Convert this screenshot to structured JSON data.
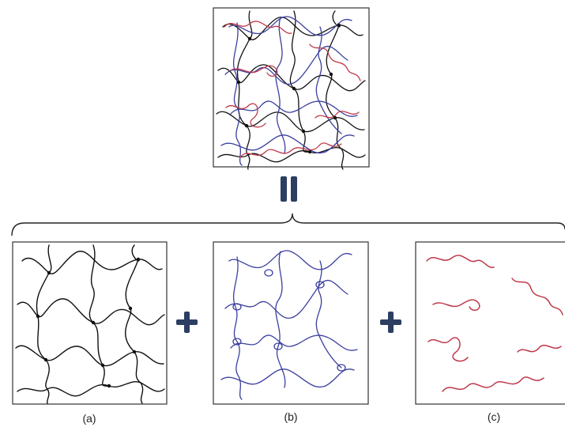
{
  "figure": {
    "panels": [
      {
        "key": "network",
        "label": "(a)",
        "component": "covalent-network",
        "color": "#111111"
      },
      {
        "key": "entangled",
        "label": "(b)",
        "component": "entangled-chains",
        "color": "#3b3f9f"
      },
      {
        "key": "free",
        "label": "(c)",
        "component": "free-chains",
        "color": "#c0394a"
      }
    ],
    "composite": {
      "component": "combined-network",
      "colors": [
        "#111111",
        "#3b3f9f",
        "#c0394a"
      ]
    },
    "operators": {
      "equals_color": "#2d3e63",
      "plus_color": "#2d3e63"
    },
    "icons": [
      "equals-icon",
      "plus-icon",
      "brace-icon"
    ]
  }
}
